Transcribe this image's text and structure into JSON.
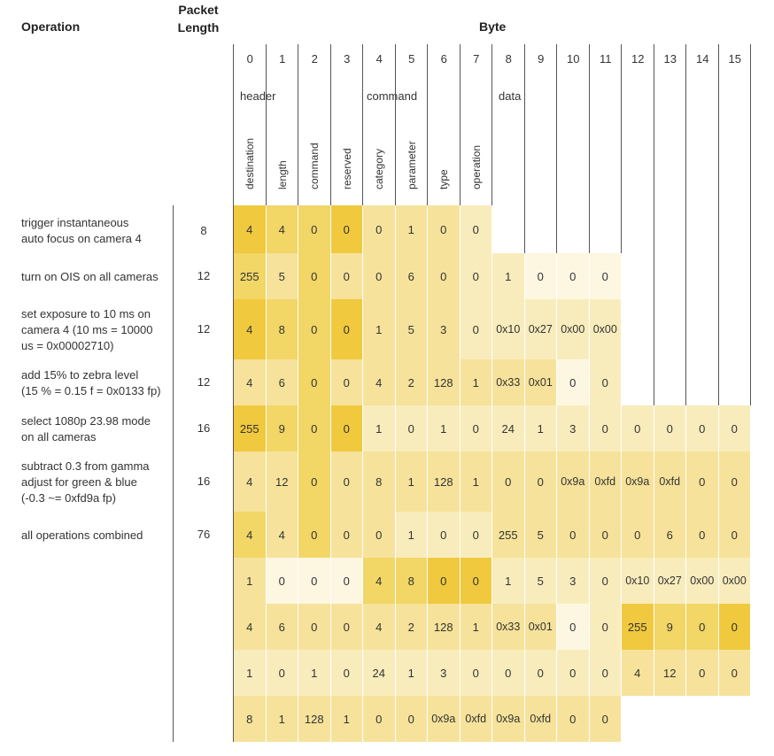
{
  "headers": {
    "operation": "Operation",
    "packet_length": [
      "Packet",
      "Length"
    ],
    "byte": "Byte"
  },
  "byte_numbers": [
    "0",
    "1",
    "2",
    "3",
    "4",
    "5",
    "6",
    "7",
    "8",
    "9",
    "10",
    "11",
    "12",
    "13",
    "14",
    "15"
  ],
  "groups": {
    "header": "header",
    "command": "command",
    "data": "data"
  },
  "field_labels": [
    "destination",
    "length",
    "command",
    "reserved",
    "category",
    "parameter",
    "type",
    "operation"
  ],
  "colors": {
    "c0": "#fdf7e2",
    "c1": "#f9ecbc",
    "c2": "#f6e29a",
    "c3": "#f2d666",
    "c4": "#f0c93e"
  },
  "operations": [
    {
      "label": "trigger instantaneous auto focus on camera 4",
      "lines": [
        "trigger instantaneous",
        "auto focus on camera 4"
      ],
      "length": "8"
    },
    {
      "label": "turn on OIS on all cameras",
      "lines": [
        "turn on OIS on all cameras"
      ],
      "length": "12"
    },
    {
      "label": "set exposure to 10 ms on camera 4 (10 ms = 10000 us = 0x00002710)",
      "lines": [
        "set exposure to 10 ms on",
        "camera 4 (10 ms = 10000",
        "us = 0x00002710)"
      ],
      "length": "12"
    },
    {
      "label": "add 15% to zebra level (15 % = 0.15 f = 0x0133 fp)",
      "lines": [
        "add 15% to zebra level",
        "(15 % = 0.15 f = 0x0133 fp)"
      ],
      "length": "12"
    },
    {
      "label": "select 1080p 23.98 mode on all cameras",
      "lines": [
        "select 1080p 23.98 mode",
        "on all cameras"
      ],
      "length": "16"
    },
    {
      "label": "subtract 0.3 from gamma adjust for green & blue (-0.3 ~= 0xfd9a fp)",
      "lines": [
        "subtract 0.3 from gamma",
        "adjust for green & blue",
        "(-0.3 ~= 0xfd9a fp)"
      ],
      "length": "16"
    },
    {
      "label": "all operations combined",
      "lines": [
        "all operations combined"
      ],
      "length": "76"
    }
  ],
  "rows": [
    {
      "cells": [
        "4",
        "4",
        "0",
        "0",
        "0",
        "1",
        "0",
        "0"
      ],
      "shades": [
        4,
        3,
        3,
        4,
        2,
        2,
        2,
        1
      ]
    },
    {
      "cells": [
        "255",
        "5",
        "0",
        "0",
        "0",
        "6",
        "0",
        "0",
        "1",
        "0",
        "0",
        "0"
      ],
      "shades": [
        3,
        2,
        3,
        2,
        2,
        2,
        2,
        1,
        1,
        0,
        0,
        0
      ]
    },
    {
      "cells": [
        "4",
        "8",
        "0",
        "0",
        "1",
        "5",
        "3",
        "0",
        "0x10",
        "0x27",
        "0x00",
        "0x00"
      ],
      "shades": [
        4,
        3,
        3,
        4,
        2,
        2,
        2,
        1,
        1,
        1,
        1,
        1
      ]
    },
    {
      "cells": [
        "4",
        "6",
        "0",
        "0",
        "4",
        "2",
        "128",
        "1",
        "0x33",
        "0x01",
        "0",
        "0"
      ],
      "shades": [
        2,
        2,
        3,
        2,
        2,
        2,
        2,
        2,
        2,
        2,
        0,
        1
      ]
    },
    {
      "cells": [
        "255",
        "9",
        "0",
        "0",
        "1",
        "0",
        "1",
        "0",
        "24",
        "1",
        "3",
        "0",
        "0",
        "0",
        "0",
        "0"
      ],
      "shades": [
        4,
        3,
        3,
        4,
        1,
        1,
        1,
        1,
        1,
        1,
        1,
        1,
        1,
        1,
        1,
        1
      ]
    },
    {
      "cells": [
        "4",
        "12",
        "0",
        "0",
        "8",
        "1",
        "128",
        "1",
        "0",
        "0",
        "0x9a",
        "0xfd",
        "0x9a",
        "0xfd",
        "0",
        "0"
      ],
      "shades": [
        2,
        2,
        3,
        2,
        2,
        2,
        2,
        2,
        2,
        2,
        2,
        2,
        2,
        2,
        2,
        2
      ]
    },
    {
      "cells": [
        "4",
        "4",
        "0",
        "0",
        "0",
        "1",
        "0",
        "0",
        "255",
        "5",
        "0",
        "0",
        "0",
        "6",
        "0",
        "0"
      ],
      "shades": [
        3,
        2,
        3,
        2,
        2,
        1,
        1,
        1,
        2,
        2,
        2,
        2,
        2,
        2,
        2,
        2
      ]
    },
    {
      "cells": [
        "1",
        "0",
        "0",
        "0",
        "4",
        "8",
        "0",
        "0",
        "1",
        "5",
        "3",
        "0",
        "0x10",
        "0x27",
        "0x00",
        "0x00"
      ],
      "shades": [
        2,
        0,
        0,
        0,
        3,
        3,
        4,
        4,
        1,
        1,
        1,
        1,
        1,
        1,
        1,
        1
      ]
    },
    {
      "cells": [
        "4",
        "6",
        "0",
        "0",
        "4",
        "2",
        "128",
        "1",
        "0x33",
        "0x01",
        "0",
        "0",
        "255",
        "9",
        "0",
        "0"
      ],
      "shades": [
        2,
        2,
        2,
        2,
        2,
        2,
        2,
        2,
        2,
        2,
        0,
        1,
        4,
        3,
        3,
        4
      ]
    },
    {
      "cells": [
        "1",
        "0",
        "1",
        "0",
        "24",
        "1",
        "3",
        "0",
        "0",
        "0",
        "0",
        "0",
        "4",
        "12",
        "0",
        "0"
      ],
      "shades": [
        1,
        1,
        1,
        1,
        1,
        1,
        1,
        1,
        1,
        1,
        1,
        1,
        2,
        2,
        2,
        2
      ]
    },
    {
      "cells": [
        "8",
        "1",
        "128",
        "1",
        "0",
        "0",
        "0x9a",
        "0xfd",
        "0x9a",
        "0xfd",
        "0",
        "0"
      ],
      "shades": [
        2,
        2,
        2,
        2,
        2,
        2,
        2,
        2,
        2,
        2,
        2,
        2
      ]
    }
  ]
}
